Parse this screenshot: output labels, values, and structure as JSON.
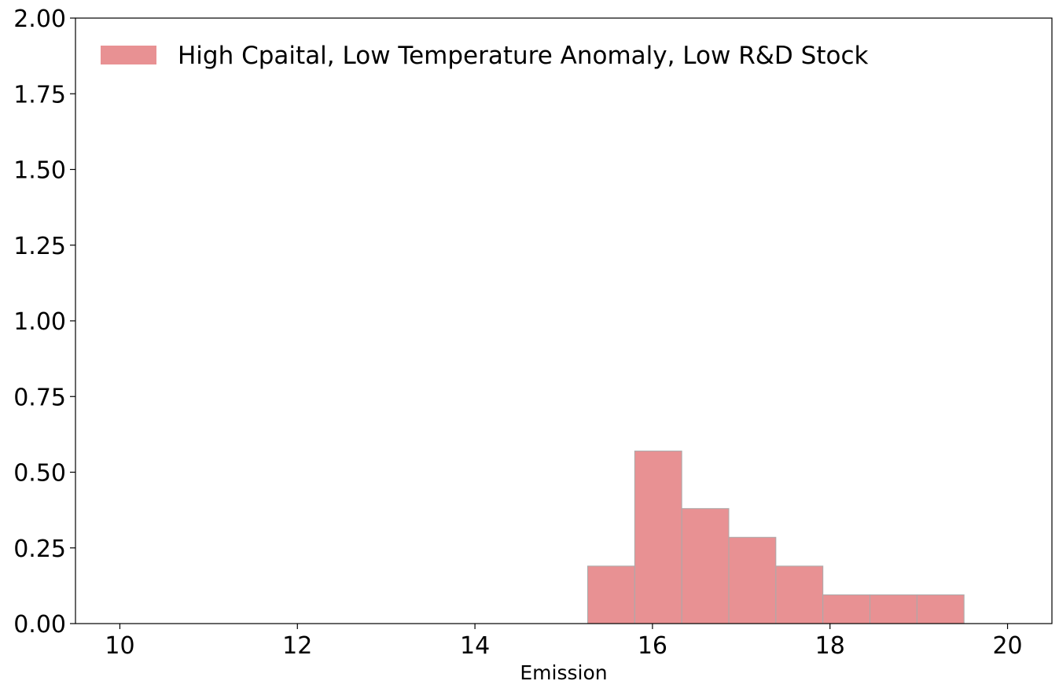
{
  "chart_data": {
    "type": "bar",
    "title": "",
    "xlabel": "Emission",
    "ylabel": "",
    "xlim": [
      9.5,
      20.5
    ],
    "ylim": [
      0,
      2.0
    ],
    "xticks": [
      10,
      12,
      14,
      16,
      18,
      20
    ],
    "xtick_labels": [
      "10",
      "12",
      "14",
      "16",
      "18",
      "20"
    ],
    "yticks": [
      0,
      0.25,
      0.5,
      0.75,
      1.0,
      1.25,
      1.5,
      1.75,
      2.0
    ],
    "ytick_labels": [
      "0.00",
      "0.25",
      "0.50",
      "0.75",
      "1.00",
      "1.25",
      "1.50",
      "1.75",
      "2.00"
    ],
    "grid": false,
    "legend_position": "top-left",
    "series": [
      {
        "name": "High Cpaital, Low Temperature Anomaly, Low R&D Stock",
        "color": "#e89193",
        "edge_color": "#aaaaaa",
        "bins": [
          {
            "x0": 15.27,
            "x1": 15.8,
            "value": 0.19
          },
          {
            "x0": 15.8,
            "x1": 16.33,
            "value": 0.57
          },
          {
            "x0": 16.33,
            "x1": 16.86,
            "value": 0.38
          },
          {
            "x0": 16.86,
            "x1": 17.39,
            "value": 0.285
          },
          {
            "x0": 17.39,
            "x1": 17.92,
            "value": 0.19
          },
          {
            "x0": 17.92,
            "x1": 18.45,
            "value": 0.095
          },
          {
            "x0": 18.45,
            "x1": 18.98,
            "value": 0.095
          },
          {
            "x0": 18.98,
            "x1": 19.51,
            "value": 0.095
          }
        ]
      }
    ]
  }
}
